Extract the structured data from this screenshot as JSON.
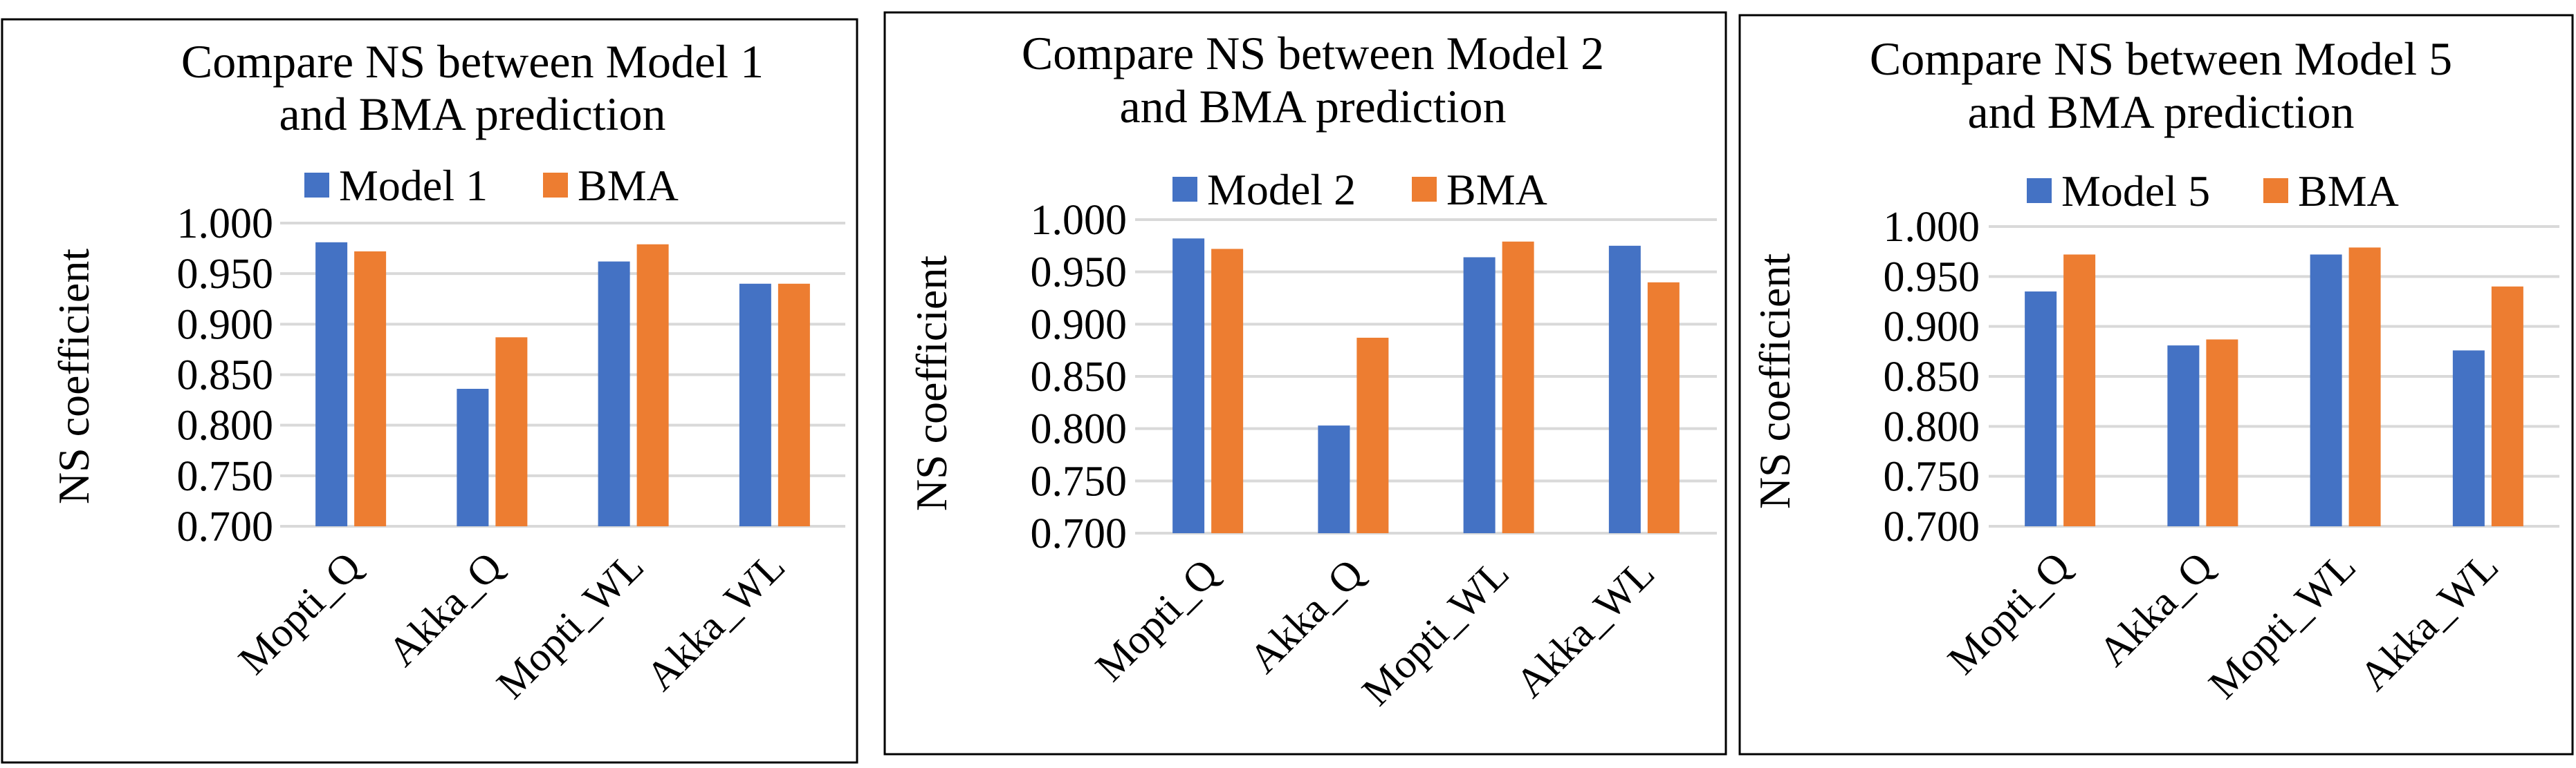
{
  "chart_data": [
    {
      "type": "bar",
      "title": [
        "Compare NS between  Model 1",
        "and BMA prediction"
      ],
      "xlabel": "",
      "ylabel": "NS coefficient",
      "ylim": [
        0.7,
        1.0
      ],
      "yticks": [
        "0.700",
        "0.750",
        "0.800",
        "0.850",
        "0.900",
        "0.950",
        "1.000"
      ],
      "categories": [
        "Mopti_Q",
        "Akka_Q",
        "Mopti_WL",
        "Akka_WL"
      ],
      "legend_position": "top-center",
      "series": [
        {
          "name": "Model 1",
          "color": "#4472c4",
          "values": [
            0.981,
            0.836,
            0.962,
            0.94
          ]
        },
        {
          "name": "BMA",
          "color": "#ed7d31",
          "values": [
            0.972,
            0.887,
            0.979,
            0.94
          ]
        }
      ]
    },
    {
      "type": "bar",
      "title": [
        "Compare NS between Model 2",
        "and BMA prediction"
      ],
      "xlabel": "",
      "ylabel": "NS coefficient",
      "ylim": [
        0.7,
        1.0
      ],
      "yticks": [
        "0.700",
        "0.750",
        "0.800",
        "0.850",
        "0.900",
        "0.950",
        "1.000"
      ],
      "categories": [
        "Mopti_Q",
        "Akka_Q",
        "Mopti_WL",
        "Akka_WL"
      ],
      "legend_position": "top-center",
      "series": [
        {
          "name": "Model 2",
          "color": "#4472c4",
          "values": [
            0.982,
            0.803,
            0.964,
            0.975
          ]
        },
        {
          "name": "BMA",
          "color": "#ed7d31",
          "values": [
            0.972,
            0.887,
            0.979,
            0.94
          ]
        }
      ]
    },
    {
      "type": "bar",
      "title": [
        "Compare NS between Model 5",
        "and BMA prediction"
      ],
      "xlabel": "",
      "ylabel": "NS coefficient",
      "ylim": [
        0.7,
        1.0
      ],
      "yticks": [
        "0.700",
        "0.750",
        "0.800",
        "0.850",
        "0.900",
        "0.950",
        "1.000"
      ],
      "categories": [
        "Mopti_Q",
        "Akka_Q",
        "Mopti_WL",
        "Akka_WL"
      ],
      "legend_position": "top-center",
      "series": [
        {
          "name": "Model 5",
          "color": "#4472c4",
          "values": [
            0.935,
            0.881,
            0.972,
            0.876
          ]
        },
        {
          "name": "BMA",
          "color": "#ed7d31",
          "values": [
            0.972,
            0.887,
            0.979,
            0.94
          ]
        }
      ]
    }
  ]
}
